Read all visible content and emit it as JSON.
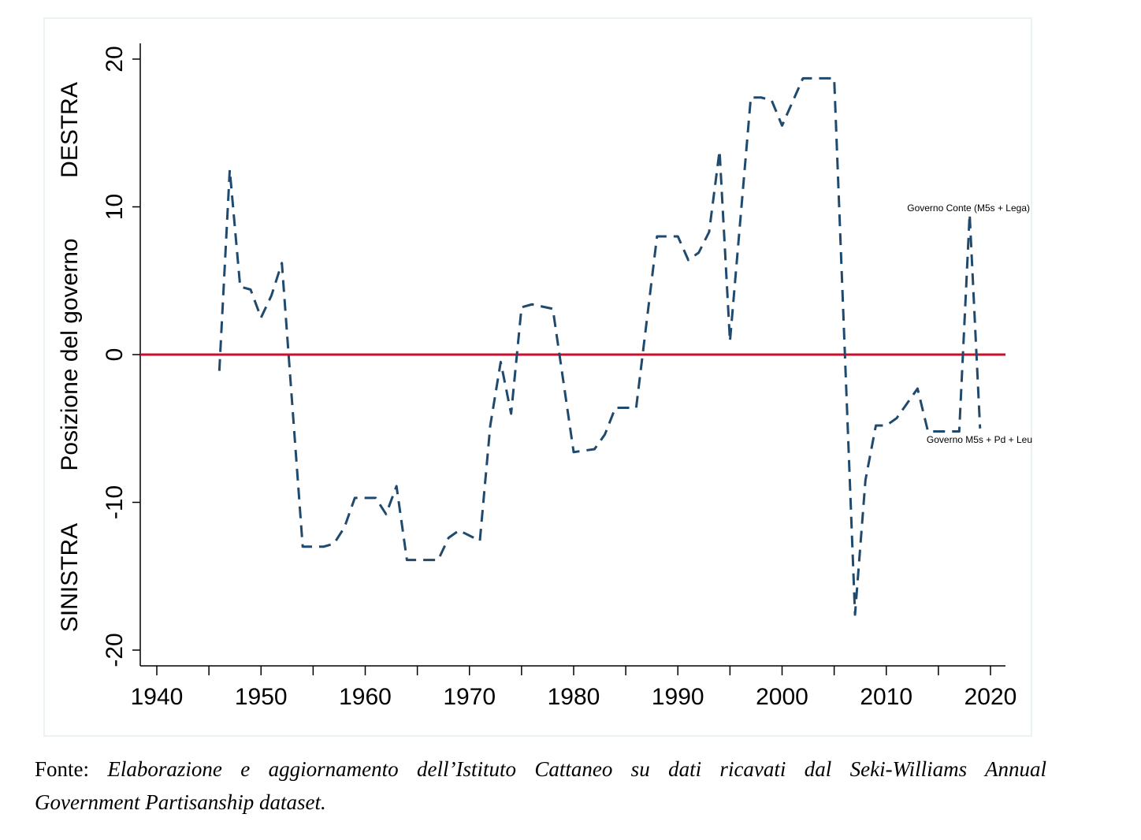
{
  "chart_data": {
    "type": "line",
    "title": "",
    "xlabel": "",
    "ylabel": "Posizione del governo",
    "ylabel_top": "DESTRA",
    "ylabel_bottom": "SINISTRA",
    "xlim": [
      1940,
      2020
    ],
    "ylim": [
      -20,
      20
    ],
    "xticks": [
      1940,
      1950,
      1960,
      1970,
      1980,
      1990,
      2000,
      2010,
      2020
    ],
    "xticks_minor": [
      1945,
      1955,
      1965,
      1975,
      1985,
      1995,
      2005,
      2015
    ],
    "yticks": [
      -20,
      -10,
      0,
      10,
      20
    ],
    "grid": false,
    "reference_line": {
      "y": 0,
      "color": "#c8102e"
    },
    "series": [
      {
        "name": "Posizione del governo",
        "color": "#1f4a6e",
        "style": "dashed",
        "x": [
          1946,
          1947,
          1948,
          1949,
          1950,
          1951,
          1952,
          1954,
          1956,
          1957,
          1958,
          1959,
          1961,
          1962,
          1963,
          1964,
          1967,
          1968,
          1969,
          1971,
          1972,
          1973,
          1974,
          1975,
          1976,
          1978,
          1980,
          1982,
          1983,
          1984,
          1986,
          1988,
          1990,
          1991,
          1992,
          1993,
          1994,
          1995,
          1997,
          1998,
          1999,
          2000,
          2002,
          2005,
          2007,
          2008,
          2009,
          2010,
          2011,
          2013,
          2014,
          2017,
          2018,
          2019
        ],
        "y": [
          -1.1,
          12.5,
          4.6,
          4.4,
          2.5,
          4.0,
          6.2,
          -13.0,
          -13.0,
          -12.8,
          -11.7,
          -9.7,
          -9.7,
          -10.8,
          -8.9,
          -13.9,
          -13.9,
          -12.4,
          -11.9,
          -12.6,
          -4.8,
          -0.5,
          -4.0,
          3.2,
          3.4,
          3.1,
          -6.6,
          -6.4,
          -5.4,
          -3.6,
          -3.6,
          8.0,
          8.0,
          6.4,
          6.9,
          8.3,
          13.8,
          0.9,
          17.4,
          17.4,
          17.2,
          15.5,
          18.7,
          18.7,
          -17.6,
          -8.5,
          -4.8,
          -4.8,
          -4.3,
          -2.3,
          -5.2,
          -5.2,
          9.5,
          -5.0
        ]
      }
    ],
    "annotations": [
      {
        "text": "Governo Conte (M5s + Lega)",
        "x": 2018,
        "y": 9.5
      },
      {
        "text": "Governo M5s + Pd + Leu",
        "x": 2019,
        "y": -5.0
      }
    ]
  },
  "caption": {
    "prefix": "Fonte:",
    "line1": "Elaborazione e aggiornamento dell’Istituto Cattaneo su dati ricavati dal Seki-Williams Annual",
    "line2": "Government Partisanship dataset."
  }
}
